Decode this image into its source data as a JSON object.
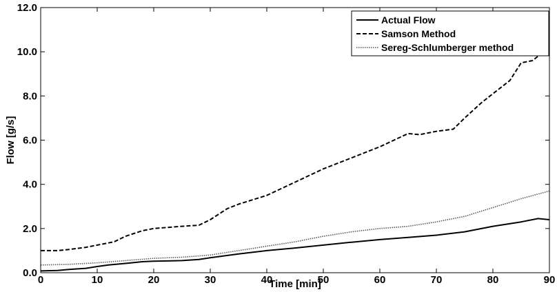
{
  "chart_data": {
    "type": "line",
    "xlabel": "Time [min]",
    "ylabel": "Flow [g/s]",
    "xlim": [
      0,
      90
    ],
    "ylim": [
      0,
      12
    ],
    "xticks": [
      0,
      10,
      20,
      30,
      40,
      50,
      60,
      70,
      80,
      90
    ],
    "xtick_labels": [
      "0",
      "10",
      "20",
      "30",
      "40",
      "50",
      "60",
      "70",
      "80",
      "90"
    ],
    "yticks": [
      0,
      2,
      4,
      6,
      8,
      10,
      12
    ],
    "ytick_labels": [
      "0.0",
      "2.0",
      "4.0",
      "6.0",
      "8.0",
      "10.0",
      "12.0"
    ],
    "grid": false,
    "legend_position": "top-right",
    "series": [
      {
        "name": "Actual Flow",
        "style": "solid",
        "color": "#000000",
        "x": [
          0,
          3,
          5,
          8,
          10,
          12,
          15,
          18,
          20,
          25,
          28,
          30,
          35,
          40,
          45,
          50,
          55,
          60,
          65,
          70,
          75,
          80,
          85,
          88,
          90
        ],
        "y": [
          0.08,
          0.1,
          0.15,
          0.2,
          0.28,
          0.35,
          0.42,
          0.5,
          0.52,
          0.55,
          0.6,
          0.68,
          0.85,
          1.0,
          1.12,
          1.25,
          1.38,
          1.5,
          1.6,
          1.7,
          1.85,
          2.1,
          2.3,
          2.45,
          2.4
        ]
      },
      {
        "name": "Samson Method",
        "style": "dashed",
        "color": "#000000",
        "x": [
          0,
          3,
          5,
          8,
          10,
          12,
          13,
          15,
          18,
          20,
          25,
          28,
          30,
          33,
          35,
          40,
          45,
          50,
          55,
          60,
          65,
          67,
          70,
          73,
          75,
          78,
          80,
          83,
          85,
          87,
          90
        ],
        "y": [
          1.0,
          1.0,
          1.05,
          1.15,
          1.25,
          1.35,
          1.4,
          1.65,
          1.9,
          2.0,
          2.1,
          2.15,
          2.4,
          2.9,
          3.1,
          3.5,
          4.1,
          4.7,
          5.2,
          5.7,
          6.3,
          6.25,
          6.4,
          6.5,
          7.0,
          7.7,
          8.1,
          8.7,
          9.5,
          9.6,
          10.2
        ]
      },
      {
        "name": "Sereg-Schlumberger method",
        "style": "dotted",
        "color": "#555555",
        "x": [
          0,
          5,
          10,
          15,
          20,
          25,
          30,
          35,
          40,
          45,
          50,
          55,
          60,
          65,
          70,
          75,
          80,
          85,
          90
        ],
        "y": [
          0.35,
          0.38,
          0.45,
          0.55,
          0.65,
          0.7,
          0.8,
          1.0,
          1.2,
          1.4,
          1.65,
          1.85,
          2.0,
          2.1,
          2.3,
          2.55,
          2.95,
          3.35,
          3.7
        ]
      }
    ]
  }
}
